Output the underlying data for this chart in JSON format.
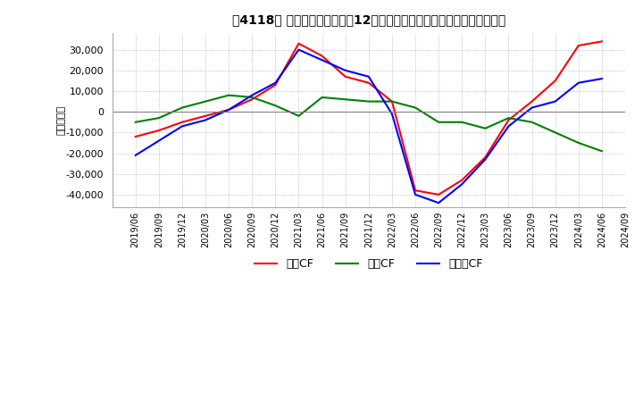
{
  "title": "［4118］ キャッシュフローの12か月移動合計の対前年同期増減額の推移",
  "ylabel": "（百万円）",
  "ylim": [
    -46000,
    38000
  ],
  "yticks": [
    -40000,
    -30000,
    -20000,
    -10000,
    0,
    10000,
    20000,
    30000
  ],
  "dates": [
    "2019/06",
    "2019/09",
    "2019/12",
    "2020/03",
    "2020/06",
    "2020/09",
    "2020/12",
    "2021/03",
    "2021/06",
    "2021/09",
    "2021/12",
    "2022/03",
    "2022/06",
    "2022/09",
    "2022/12",
    "2023/03",
    "2023/06",
    "2023/09",
    "2023/12",
    "2024/03",
    "2024/06",
    "2024/09"
  ],
  "operating_cf": [
    -12000,
    -9000,
    -5000,
    -2000,
    1000,
    6000,
    13000,
    33000,
    27000,
    17000,
    14000,
    5000,
    -38000,
    -40000,
    -33000,
    -22000,
    -4000,
    5000,
    15000,
    32000,
    34000,
    null
  ],
  "investing_cf": [
    -5000,
    -3000,
    2000,
    5000,
    8000,
    7000,
    3000,
    -2000,
    7000,
    6000,
    5000,
    5000,
    2000,
    -5000,
    -5000,
    -8000,
    -3000,
    -5000,
    -10000,
    -15000,
    -19000,
    null
  ],
  "free_cf": [
    -21000,
    -14000,
    -7000,
    -4000,
    1000,
    8000,
    14000,
    30000,
    25000,
    20000,
    17000,
    -1000,
    -40000,
    -44000,
    -35000,
    -23000,
    -7000,
    2000,
    5000,
    14000,
    16000,
    null
  ],
  "operating_color": "#FF0000",
  "investing_color": "#008000",
  "free_cf_color": "#0000FF",
  "background_color": "#FFFFFF",
  "grid_color": "#9999BB",
  "legend_labels": [
    "営業CF",
    "投資CF",
    "フリーCF"
  ]
}
